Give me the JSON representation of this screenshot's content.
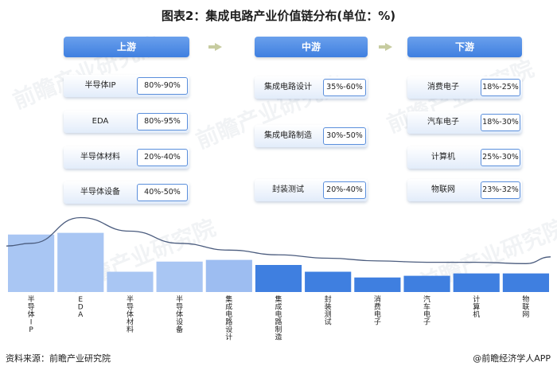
{
  "title": "图表2：集成电路产业价值链分布(单位：%)",
  "stages": [
    {
      "header": "上游",
      "rows": [
        {
          "label": "半导体IP",
          "value": "80%-90%"
        },
        {
          "label": "EDA",
          "value": "80%-95%"
        },
        {
          "label": "半导体材料",
          "value": "20%-40%"
        },
        {
          "label": "半导体设备",
          "value": "40%-50%"
        }
      ]
    },
    {
      "header": "中游",
      "rows": [
        {
          "label": "集成电路设计",
          "value": "35%-60%"
        },
        {
          "label": "集成电路制造",
          "value": "30%-50%"
        },
        {
          "label": "封装测试",
          "value": "20%-40%"
        }
      ]
    },
    {
      "header": "下游",
      "rows": [
        {
          "label": "消费电子",
          "value": "18%-25%"
        },
        {
          "label": "汽车电子",
          "value": "18%-30%"
        },
        {
          "label": "计算机",
          "value": "25%-30%"
        },
        {
          "label": "物联网",
          "value": "23%-32%"
        }
      ]
    }
  ],
  "chart_data": {
    "type": "bar",
    "categories": [
      "半导体IP",
      "EDA",
      "半导体材料",
      "半导体设备",
      "集成电路设计",
      "集成电路制造",
      "封装测试",
      "消费电子",
      "汽车电子",
      "计算机",
      "物联网"
    ],
    "values": [
      85,
      87.5,
      30,
      45,
      47.5,
      40,
      30,
      21.5,
      24,
      27.5,
      27.5
    ],
    "stage_of_category": [
      0,
      0,
      0,
      0,
      1,
      1,
      1,
      2,
      2,
      2,
      2
    ],
    "bar_colors": [
      "#a9c6f3",
      "#a9c6f3",
      "#a9c6f3",
      "#a9c6f3",
      "#9dbdf1",
      "#3f7fe0",
      "#3f7fe0",
      "#3f7fe0",
      "#3f7fe0",
      "#3f7fe0",
      "#3f7fe0"
    ],
    "trend_color": "#4b5c7e",
    "grid": false
  },
  "source": "资料来源：前瞻产业研究院",
  "brand": "@前瞻经济学人APP",
  "colors": {
    "accent": "#3f7fe0",
    "light_bar": "#a9c6f3",
    "value_border": "#5b8fdc"
  },
  "watermark": "前瞻产业研究院"
}
